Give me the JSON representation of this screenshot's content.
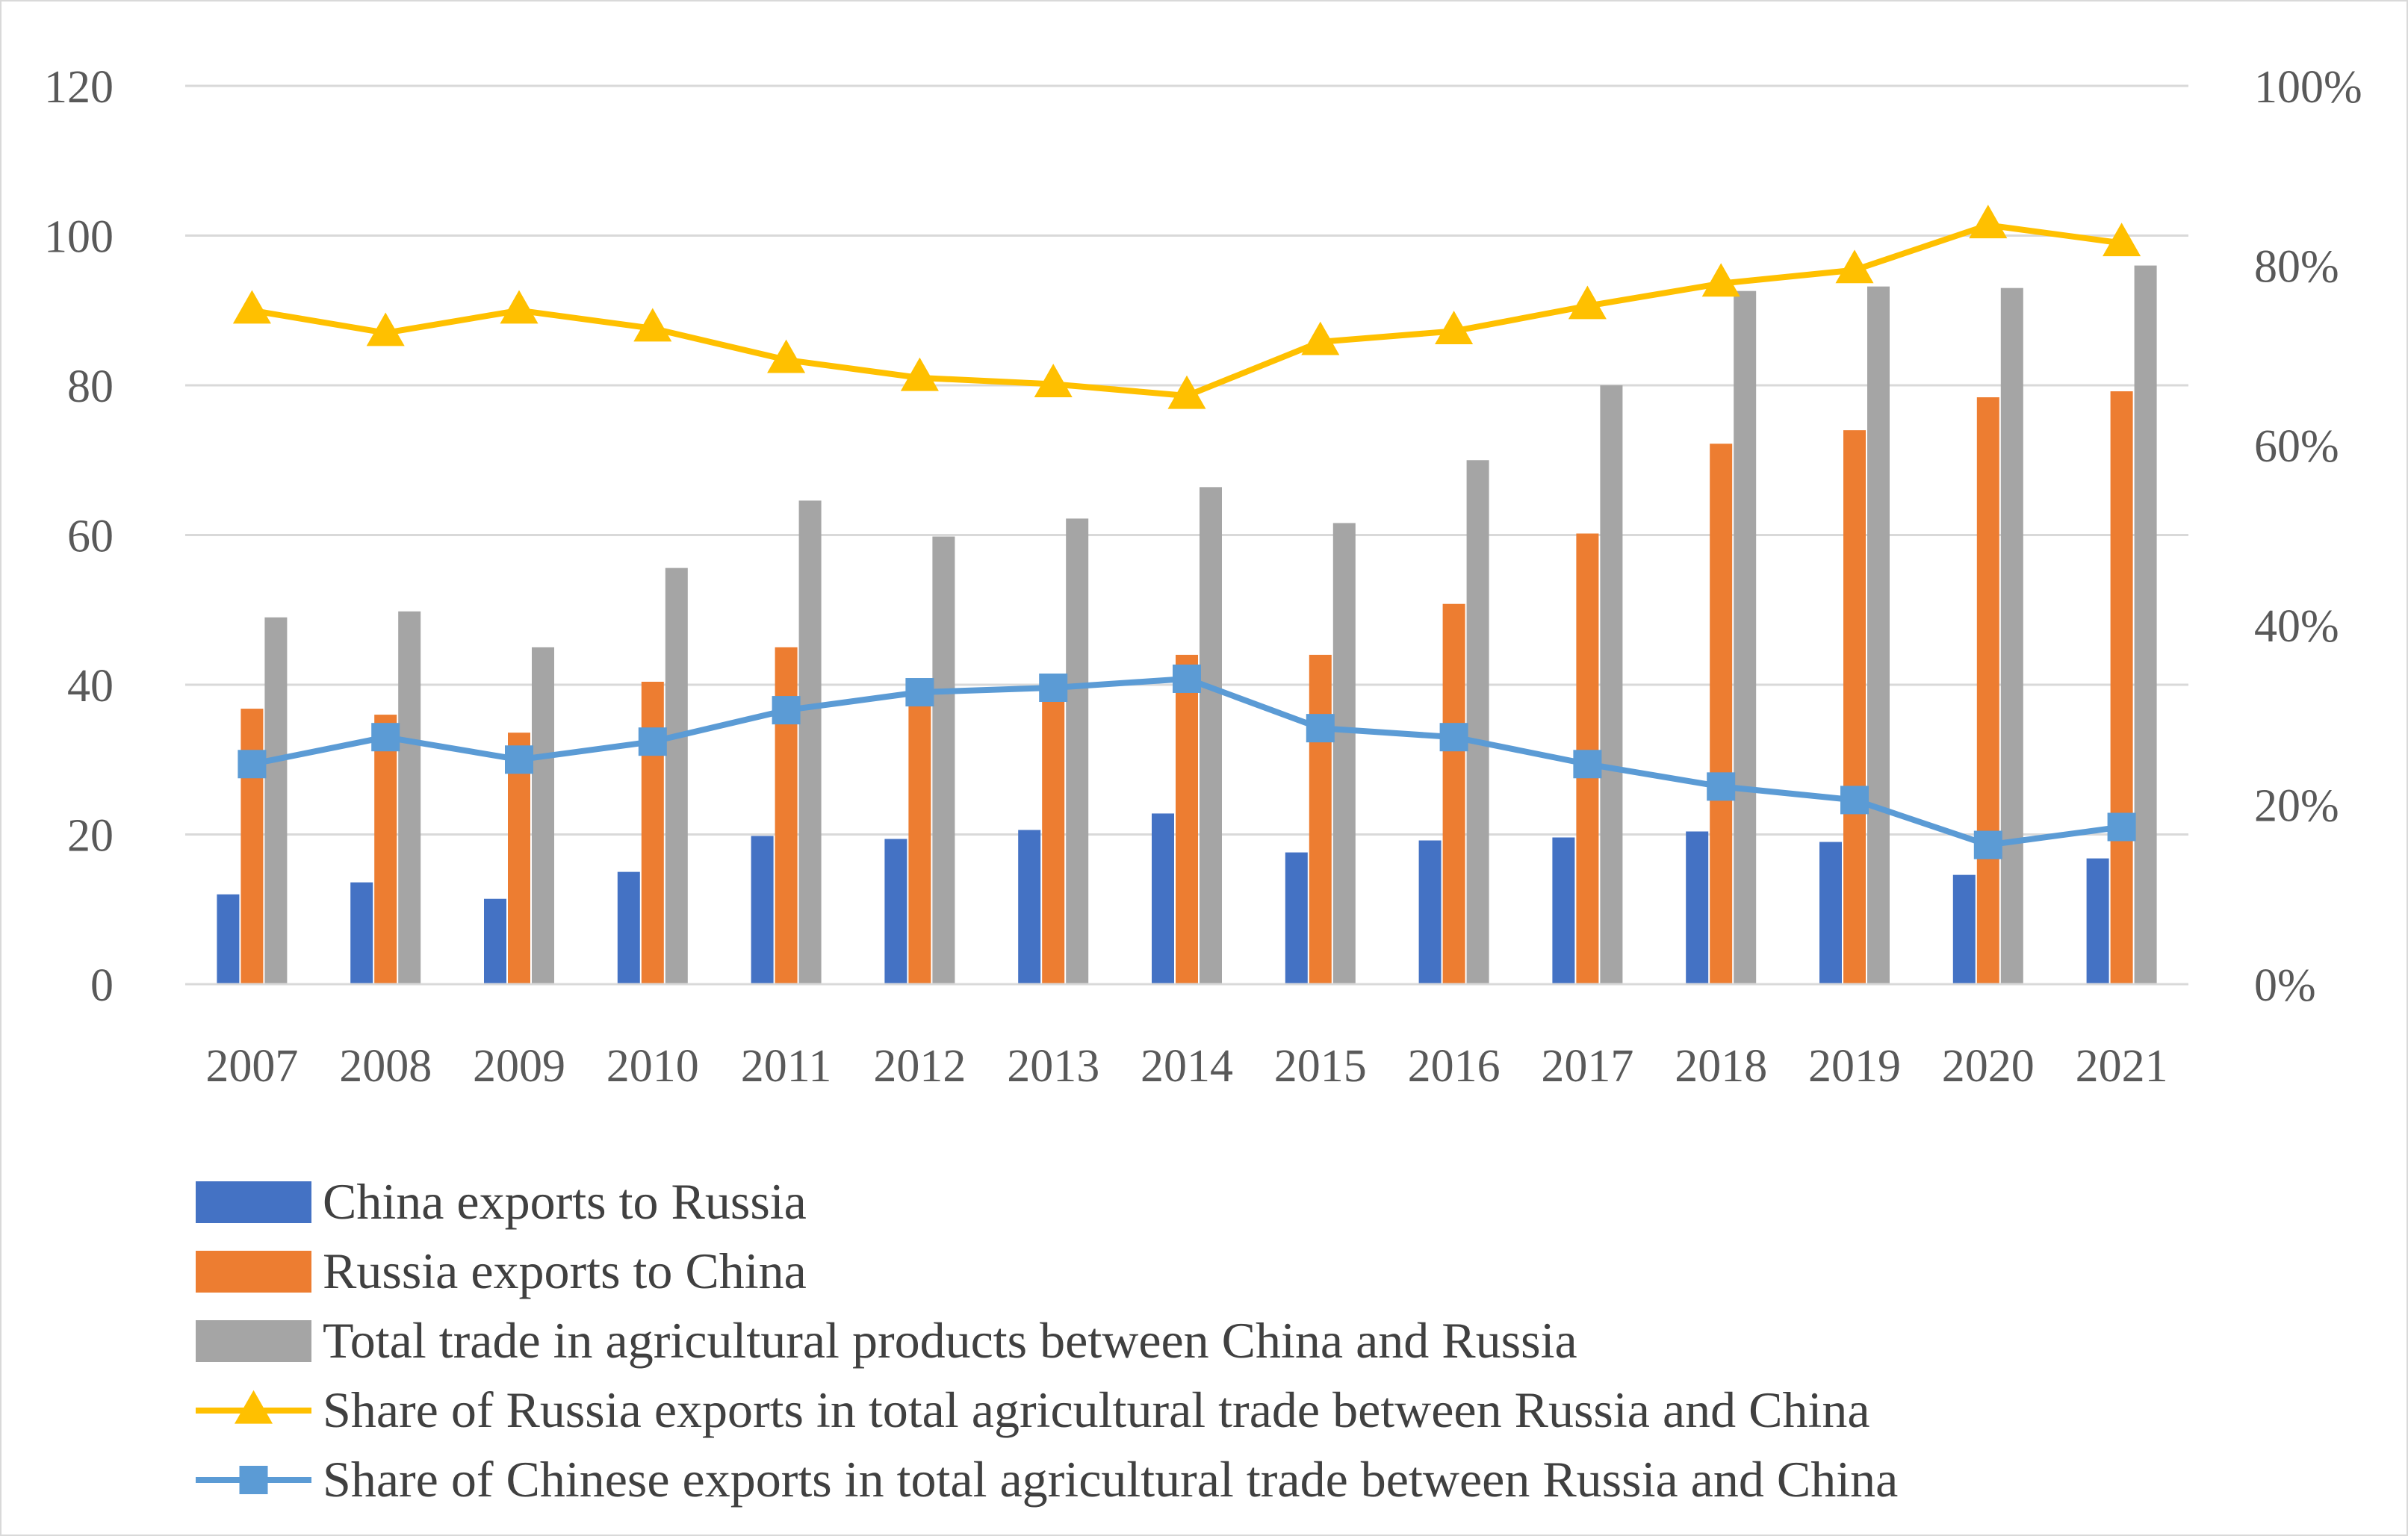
{
  "chart_data": {
    "type": "bar",
    "categories": [
      "2007",
      "2008",
      "2009",
      "2010",
      "2011",
      "2012",
      "2013",
      "2014",
      "2015",
      "2016",
      "2017",
      "2018",
      "2019",
      "2020",
      "2021"
    ],
    "y_left": {
      "ylim": [
        0,
        120
      ],
      "ticks": [
        "0",
        "20",
        "40",
        "60",
        "80",
        "100",
        "120"
      ]
    },
    "y_right": {
      "ylim": [
        0,
        1
      ],
      "ticks": [
        "0%",
        "20%",
        "40%",
        "60%",
        "80%",
        "100%"
      ]
    },
    "grid": true,
    "legend_position": "bottom",
    "series": [
      {
        "name": "China exports to Russia",
        "type": "bar",
        "axis": "left",
        "color": "#4472c4",
        "values": [
          12.0,
          13.6,
          11.4,
          15.0,
          19.8,
          19.4,
          20.6,
          22.8,
          17.6,
          19.2,
          19.6,
          20.4,
          19.0,
          14.6,
          16.8
        ]
      },
      {
        "name": "Russia exports to China",
        "type": "bar",
        "axis": "left",
        "color": "#ed7d31",
        "values": [
          36.8,
          36.0,
          33.6,
          40.4,
          45.0,
          38.8,
          40.0,
          44.0,
          44.0,
          50.8,
          60.2,
          72.2,
          74.0,
          78.4,
          79.2
        ]
      },
      {
        "name": "Total trade in agricultural products between China and Russia",
        "type": "bar",
        "axis": "left",
        "color": "#a5a5a5",
        "values": [
          49.0,
          49.8,
          45.0,
          55.6,
          64.6,
          59.8,
          62.2,
          66.4,
          61.6,
          70.0,
          80.0,
          92.6,
          93.2,
          93.0,
          96.0
        ]
      },
      {
        "name": "Share of Russia exports in total agricultural trade between Russia and China",
        "type": "line",
        "axis": "right",
        "color": "#ffc000",
        "marker": "triangle",
        "values": [
          0.75,
          0.725,
          0.75,
          0.73,
          0.695,
          0.675,
          0.668,
          0.655,
          0.715,
          0.727,
          0.755,
          0.78,
          0.795,
          0.845,
          0.825
        ]
      },
      {
        "name": "Share of Chinese exports in total agricultural trade between Russia and China",
        "type": "line",
        "axis": "right",
        "color": "#5b9bd5",
        "marker": "square",
        "values": [
          0.245,
          0.275,
          0.25,
          0.27,
          0.305,
          0.325,
          0.33,
          0.34,
          0.285,
          0.275,
          0.245,
          0.22,
          0.205,
          0.155,
          0.175
        ]
      }
    ]
  }
}
